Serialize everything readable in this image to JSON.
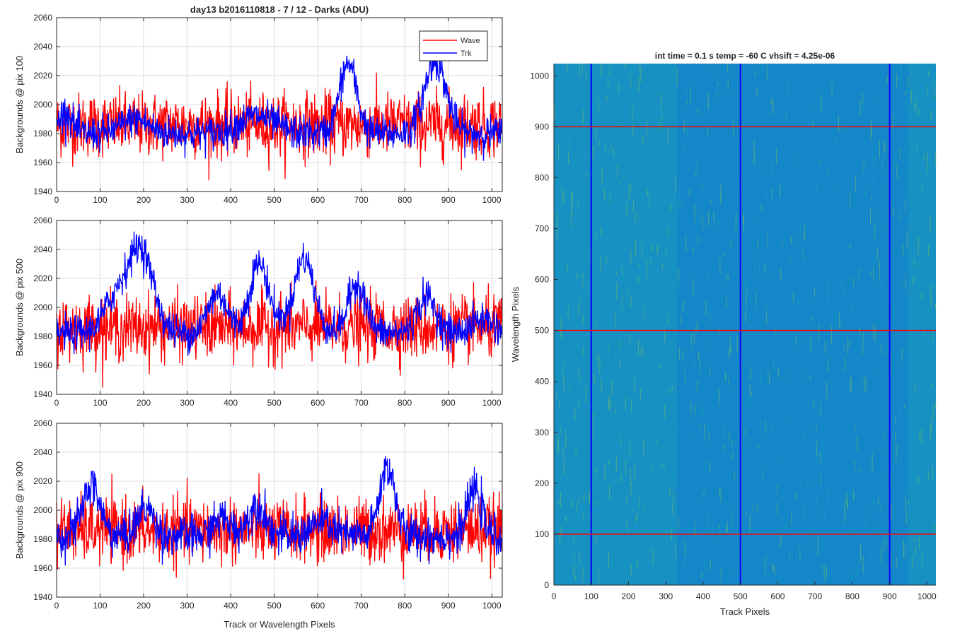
{
  "chart_data": [
    {
      "type": "line",
      "title": "day13 b2016110818 - 7 / 12 - Darks (ADU)",
      "ylabel": "Backgrounds @ pix 100",
      "xlabel": "",
      "xlim": [
        0,
        1024
      ],
      "ylim": [
        1940,
        2060
      ],
      "x_ticks": [
        0,
        100,
        200,
        300,
        400,
        500,
        600,
        700,
        800,
        900,
        1000
      ],
      "y_ticks": [
        1940,
        1960,
        1980,
        2000,
        2020,
        2040,
        2060
      ],
      "grid": true,
      "legend": {
        "location": "top-right",
        "entries": [
          "Wave",
          "Trk"
        ]
      },
      "series": [
        {
          "name": "Wave",
          "color": "#ff0000",
          "baseline": 1986,
          "noise": 11,
          "bumps": []
        },
        {
          "name": "Trk",
          "color": "#0000ff",
          "baseline": 1980,
          "noise": 6,
          "bumps": [
            [
              670,
              48,
              20
            ],
            [
              870,
              50,
              25
            ],
            [
              460,
              12,
              40
            ],
            [
              180,
              10,
              30
            ],
            [
              20,
              15,
              15
            ]
          ]
        }
      ]
    },
    {
      "type": "line",
      "title": "",
      "ylabel": "Backgrounds @ pix 500",
      "xlabel": "",
      "xlim": [
        0,
        1024
      ],
      "ylim": [
        1940,
        2060
      ],
      "x_ticks": [
        0,
        100,
        200,
        300,
        400,
        500,
        600,
        700,
        800,
        900,
        1000
      ],
      "y_ticks": [
        1940,
        1960,
        1980,
        2000,
        2020,
        2040,
        2060
      ],
      "grid": true,
      "series": [
        {
          "name": "Wave",
          "color": "#ff0000",
          "baseline": 1986,
          "noise": 11,
          "bumps": []
        },
        {
          "name": "Trk",
          "color": "#0000ff",
          "baseline": 1982,
          "noise": 6,
          "bumps": [
            [
              195,
              55,
              28
            ],
            [
              140,
              25,
              30
            ],
            [
              465,
              48,
              22
            ],
            [
              370,
              28,
              22
            ],
            [
              570,
              38,
              20
            ],
            [
              690,
              35,
              20
            ],
            [
              850,
              25,
              22
            ],
            [
              560,
              15,
              35
            ],
            [
              980,
              10,
              25
            ]
          ]
        }
      ]
    },
    {
      "type": "line",
      "title": "",
      "ylabel": "Backgrounds @ pix 900",
      "xlabel": "Track or Wavelength Pixels",
      "xlim": [
        0,
        1024
      ],
      "ylim": [
        1940,
        2060
      ],
      "x_ticks": [
        0,
        100,
        200,
        300,
        400,
        500,
        600,
        700,
        800,
        900,
        1000
      ],
      "y_ticks": [
        1940,
        1960,
        1980,
        2000,
        2020,
        2040,
        2060
      ],
      "grid": true,
      "series": [
        {
          "name": "Wave",
          "color": "#ff0000",
          "baseline": 1986,
          "noise": 11,
          "bumps": []
        },
        {
          "name": "Trk",
          "color": "#0000ff",
          "baseline": 1982,
          "noise": 7,
          "bumps": [
            [
              80,
              35,
              20
            ],
            [
              760,
              48,
              18
            ],
            [
              960,
              32,
              16
            ],
            [
              205,
              20,
              18
            ],
            [
              460,
              22,
              20
            ],
            [
              380,
              12,
              20
            ],
            [
              610,
              10,
              25
            ]
          ]
        }
      ]
    },
    {
      "type": "heatmap",
      "title": "int time = 0.1 s   temp = -60 C   vhsift = 4.25e-06",
      "xlabel": "Track Pixels",
      "ylabel": "Wavelength Pixels",
      "xlim": [
        0,
        1024
      ],
      "ylim": [
        0,
        1024
      ],
      "x_ticks": [
        0,
        100,
        200,
        300,
        400,
        500,
        600,
        700,
        800,
        900,
        1000
      ],
      "y_ticks": [
        0,
        100,
        200,
        300,
        400,
        500,
        600,
        700,
        800,
        900,
        1000
      ],
      "colors": {
        "base": "#1487c8",
        "high": "#7fc35a",
        "mid": "#19a4b5"
      },
      "vertical_lines": {
        "x": [
          100,
          500,
          900
        ],
        "color": "#0000ff"
      },
      "horizontal_lines": {
        "y": [
          100,
          500,
          900
        ],
        "color": "#ff0000"
      }
    }
  ]
}
